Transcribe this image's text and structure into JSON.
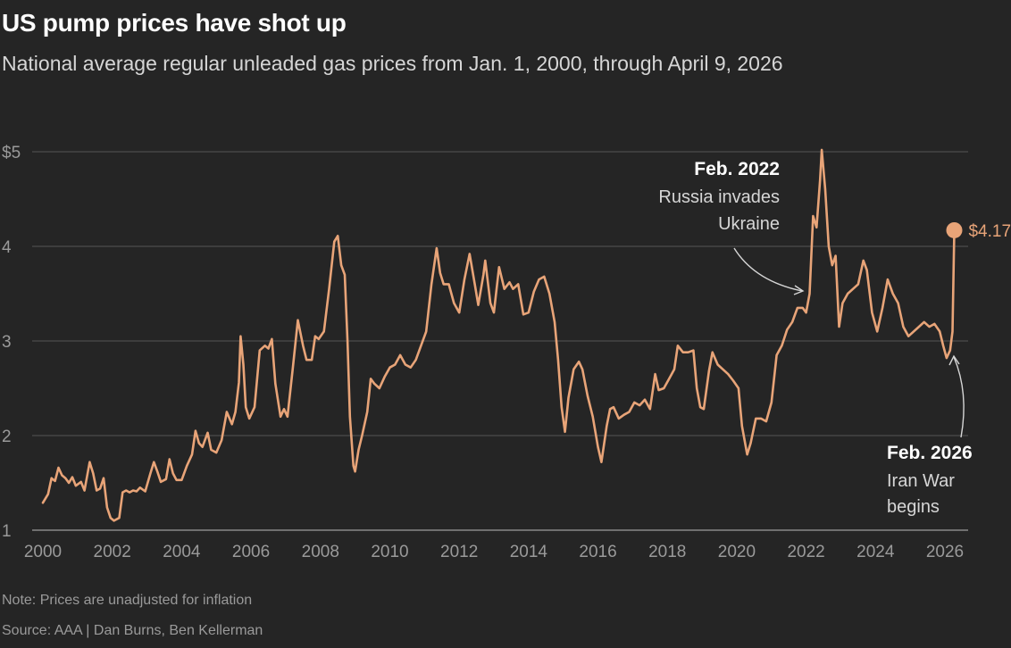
{
  "title": "US pump prices have shot up",
  "subtitle": "National average regular unleaded gas prices from Jan. 1, 2000, through April 9, 2026",
  "note": "Note: Prices are unadjusted for inflation",
  "source": "Source: AAA | Dan Burns, Ben Kellerman",
  "colors": {
    "line": "#e8a478",
    "grid": "#555555",
    "background": "#252525"
  },
  "chart_data": {
    "type": "line",
    "title": "US pump prices have shot up",
    "ylabel": "",
    "xlabel": "",
    "xlim": [
      2000,
      2026.7
    ],
    "ylim": [
      1,
      5
    ],
    "x_ticks": [
      "2000",
      "2002",
      "2004",
      "2006",
      "2008",
      "2010",
      "2012",
      "2014",
      "2016",
      "2018",
      "2020",
      "2022",
      "2024",
      "2026"
    ],
    "y_ticks": [
      "$5",
      "4",
      "3",
      "2",
      "1"
    ],
    "y_tick_values": [
      5,
      4,
      3,
      2,
      1
    ],
    "series": [
      {
        "name": "National average regular unleaded",
        "points": [
          [
            2000.0,
            1.29
          ],
          [
            2000.15,
            1.38
          ],
          [
            2000.25,
            1.55
          ],
          [
            2000.35,
            1.52
          ],
          [
            2000.45,
            1.66
          ],
          [
            2000.55,
            1.58
          ],
          [
            2000.65,
            1.55
          ],
          [
            2000.75,
            1.5
          ],
          [
            2000.85,
            1.56
          ],
          [
            2000.95,
            1.47
          ],
          [
            2001.1,
            1.51
          ],
          [
            2001.2,
            1.42
          ],
          [
            2001.35,
            1.72
          ],
          [
            2001.45,
            1.6
          ],
          [
            2001.55,
            1.42
          ],
          [
            2001.65,
            1.44
          ],
          [
            2001.75,
            1.55
          ],
          [
            2001.85,
            1.24
          ],
          [
            2001.95,
            1.13
          ],
          [
            2002.05,
            1.1
          ],
          [
            2002.2,
            1.13
          ],
          [
            2002.3,
            1.4
          ],
          [
            2002.4,
            1.42
          ],
          [
            2002.5,
            1.4
          ],
          [
            2002.6,
            1.42
          ],
          [
            2002.7,
            1.41
          ],
          [
            2002.8,
            1.45
          ],
          [
            2002.95,
            1.41
          ],
          [
            2003.1,
            1.6
          ],
          [
            2003.2,
            1.72
          ],
          [
            2003.3,
            1.62
          ],
          [
            2003.4,
            1.51
          ],
          [
            2003.55,
            1.54
          ],
          [
            2003.65,
            1.75
          ],
          [
            2003.75,
            1.6
          ],
          [
            2003.85,
            1.53
          ],
          [
            2004.0,
            1.53
          ],
          [
            2004.15,
            1.68
          ],
          [
            2004.3,
            1.8
          ],
          [
            2004.4,
            2.05
          ],
          [
            2004.5,
            1.92
          ],
          [
            2004.6,
            1.88
          ],
          [
            2004.75,
            2.03
          ],
          [
            2004.85,
            1.85
          ],
          [
            2005.0,
            1.82
          ],
          [
            2005.15,
            1.95
          ],
          [
            2005.3,
            2.25
          ],
          [
            2005.45,
            2.12
          ],
          [
            2005.55,
            2.25
          ],
          [
            2005.65,
            2.56
          ],
          [
            2005.7,
            3.05
          ],
          [
            2005.78,
            2.75
          ],
          [
            2005.85,
            2.3
          ],
          [
            2005.95,
            2.18
          ],
          [
            2006.1,
            2.3
          ],
          [
            2006.25,
            2.9
          ],
          [
            2006.4,
            2.95
          ],
          [
            2006.5,
            2.92
          ],
          [
            2006.6,
            3.02
          ],
          [
            2006.7,
            2.55
          ],
          [
            2006.85,
            2.2
          ],
          [
            2006.95,
            2.28
          ],
          [
            2007.05,
            2.2
          ],
          [
            2007.2,
            2.7
          ],
          [
            2007.35,
            3.22
          ],
          [
            2007.5,
            2.95
          ],
          [
            2007.6,
            2.8
          ],
          [
            2007.75,
            2.8
          ],
          [
            2007.85,
            3.05
          ],
          [
            2007.95,
            3.02
          ],
          [
            2008.1,
            3.1
          ],
          [
            2008.25,
            3.55
          ],
          [
            2008.4,
            4.05
          ],
          [
            2008.5,
            4.11
          ],
          [
            2008.6,
            3.8
          ],
          [
            2008.7,
            3.7
          ],
          [
            2008.78,
            3.0
          ],
          [
            2008.85,
            2.2
          ],
          [
            2008.95,
            1.68
          ],
          [
            2009.0,
            1.62
          ],
          [
            2009.1,
            1.85
          ],
          [
            2009.2,
            2.0
          ],
          [
            2009.35,
            2.25
          ],
          [
            2009.45,
            2.6
          ],
          [
            2009.55,
            2.55
          ],
          [
            2009.7,
            2.5
          ],
          [
            2009.85,
            2.62
          ],
          [
            2010.0,
            2.72
          ],
          [
            2010.15,
            2.75
          ],
          [
            2010.3,
            2.85
          ],
          [
            2010.45,
            2.75
          ],
          [
            2010.6,
            2.72
          ],
          [
            2010.75,
            2.8
          ],
          [
            2010.9,
            2.95
          ],
          [
            2011.05,
            3.1
          ],
          [
            2011.2,
            3.6
          ],
          [
            2011.35,
            3.98
          ],
          [
            2011.45,
            3.72
          ],
          [
            2011.55,
            3.6
          ],
          [
            2011.7,
            3.6
          ],
          [
            2011.85,
            3.4
          ],
          [
            2012.0,
            3.3
          ],
          [
            2012.15,
            3.65
          ],
          [
            2012.3,
            3.92
          ],
          [
            2012.45,
            3.6
          ],
          [
            2012.55,
            3.38
          ],
          [
            2012.7,
            3.7
          ],
          [
            2012.75,
            3.85
          ],
          [
            2012.9,
            3.4
          ],
          [
            2013.0,
            3.3
          ],
          [
            2013.15,
            3.78
          ],
          [
            2013.3,
            3.55
          ],
          [
            2013.45,
            3.62
          ],
          [
            2013.55,
            3.55
          ],
          [
            2013.7,
            3.6
          ],
          [
            2013.85,
            3.28
          ],
          [
            2014.0,
            3.3
          ],
          [
            2014.15,
            3.52
          ],
          [
            2014.3,
            3.65
          ],
          [
            2014.45,
            3.68
          ],
          [
            2014.6,
            3.5
          ],
          [
            2014.75,
            3.2
          ],
          [
            2014.85,
            2.8
          ],
          [
            2014.95,
            2.3
          ],
          [
            2015.05,
            2.04
          ],
          [
            2015.15,
            2.4
          ],
          [
            2015.3,
            2.7
          ],
          [
            2015.45,
            2.78
          ],
          [
            2015.55,
            2.7
          ],
          [
            2015.7,
            2.42
          ],
          [
            2015.85,
            2.2
          ],
          [
            2016.0,
            1.88
          ],
          [
            2016.1,
            1.72
          ],
          [
            2016.25,
            2.1
          ],
          [
            2016.35,
            2.28
          ],
          [
            2016.45,
            2.3
          ],
          [
            2016.6,
            2.18
          ],
          [
            2016.75,
            2.22
          ],
          [
            2016.9,
            2.25
          ],
          [
            2017.05,
            2.35
          ],
          [
            2017.2,
            2.32
          ],
          [
            2017.35,
            2.38
          ],
          [
            2017.5,
            2.28
          ],
          [
            2017.65,
            2.65
          ],
          [
            2017.75,
            2.48
          ],
          [
            2017.9,
            2.5
          ],
          [
            2018.05,
            2.6
          ],
          [
            2018.2,
            2.7
          ],
          [
            2018.3,
            2.95
          ],
          [
            2018.45,
            2.88
          ],
          [
            2018.6,
            2.88
          ],
          [
            2018.75,
            2.9
          ],
          [
            2018.85,
            2.5
          ],
          [
            2018.95,
            2.3
          ],
          [
            2019.05,
            2.28
          ],
          [
            2019.2,
            2.68
          ],
          [
            2019.3,
            2.88
          ],
          [
            2019.45,
            2.75
          ],
          [
            2019.6,
            2.7
          ],
          [
            2019.75,
            2.65
          ],
          [
            2019.9,
            2.58
          ],
          [
            2020.05,
            2.5
          ],
          [
            2020.15,
            2.1
          ],
          [
            2020.3,
            1.8
          ],
          [
            2020.4,
            1.92
          ],
          [
            2020.55,
            2.18
          ],
          [
            2020.7,
            2.18
          ],
          [
            2020.85,
            2.15
          ],
          [
            2021.0,
            2.35
          ],
          [
            2021.15,
            2.85
          ],
          [
            2021.3,
            2.95
          ],
          [
            2021.45,
            3.12
          ],
          [
            2021.6,
            3.2
          ],
          [
            2021.75,
            3.35
          ],
          [
            2021.9,
            3.35
          ],
          [
            2022.0,
            3.3
          ],
          [
            2022.1,
            3.5
          ],
          [
            2022.2,
            4.32
          ],
          [
            2022.3,
            4.2
          ],
          [
            2022.4,
            4.7
          ],
          [
            2022.45,
            5.02
          ],
          [
            2022.55,
            4.6
          ],
          [
            2022.65,
            4.0
          ],
          [
            2022.75,
            3.8
          ],
          [
            2022.85,
            3.9
          ],
          [
            2022.95,
            3.15
          ],
          [
            2023.05,
            3.4
          ],
          [
            2023.2,
            3.5
          ],
          [
            2023.35,
            3.55
          ],
          [
            2023.5,
            3.6
          ],
          [
            2023.65,
            3.85
          ],
          [
            2023.75,
            3.75
          ],
          [
            2023.9,
            3.3
          ],
          [
            2024.05,
            3.1
          ],
          [
            2024.2,
            3.35
          ],
          [
            2024.35,
            3.65
          ],
          [
            2024.5,
            3.5
          ],
          [
            2024.65,
            3.4
          ],
          [
            2024.8,
            3.15
          ],
          [
            2024.95,
            3.05
          ],
          [
            2025.1,
            3.1
          ],
          [
            2025.25,
            3.15
          ],
          [
            2025.4,
            3.2
          ],
          [
            2025.55,
            3.15
          ],
          [
            2025.7,
            3.18
          ],
          [
            2025.85,
            3.1
          ],
          [
            2025.95,
            2.95
          ],
          [
            2026.05,
            2.82
          ],
          [
            2026.15,
            2.9
          ],
          [
            2026.22,
            3.1
          ],
          [
            2026.27,
            4.17
          ]
        ]
      }
    ],
    "end_value": 4.17,
    "end_label": "$4.17",
    "annotations": [
      {
        "date": "Feb. 2022",
        "text_lines": [
          "Russia invades",
          "Ukraine"
        ],
        "x": 2022.1,
        "y": 3.4
      },
      {
        "date": "Feb. 2026",
        "text_lines": [
          "Iran War",
          "begins"
        ],
        "x": 2026.15,
        "y": 2.85
      }
    ]
  }
}
